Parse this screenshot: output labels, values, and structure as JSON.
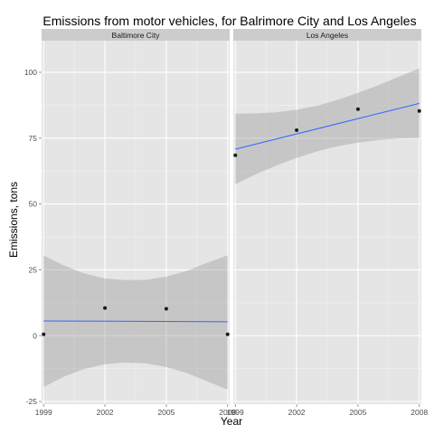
{
  "chart_data": {
    "type": "scatter",
    "title": "Emissions from motor vehicles, for Balrimore City and Los Angeles",
    "xlabel": "Year",
    "ylabel": "Emissions, tons",
    "xlim": [
      1998.9,
      2008.1
    ],
    "ylim": [
      -26,
      112
    ],
    "x_ticks": [
      1999,
      2002,
      2005,
      2008
    ],
    "x_tick_labels": [
      "1999",
      "2002",
      "2005",
      "2008"
    ],
    "y_ticks": [
      -25,
      0,
      25,
      50,
      75,
      100
    ],
    "y_tick_labels": [
      "-25",
      "0",
      "25",
      "50",
      "75",
      "100"
    ],
    "grid": true,
    "facets": [
      {
        "label": "Baltimore City",
        "points": [
          {
            "x": 1999,
            "y": 0.5
          },
          {
            "x": 2002,
            "y": 10.5
          },
          {
            "x": 2005,
            "y": 10.2
          },
          {
            "x": 2008,
            "y": 0.5
          }
        ],
        "fit": [
          {
            "x": 1999,
            "y": 5.6
          },
          {
            "x": 2008,
            "y": 5.3
          }
        ],
        "band": [
          {
            "x": 1999,
            "lo": -19.5,
            "hi": 30.5
          },
          {
            "x": 2000,
            "lo": -15.5,
            "hi": 26.6
          },
          {
            "x": 2001,
            "lo": -12.6,
            "hi": 23.6
          },
          {
            "x": 2002,
            "lo": -10.8,
            "hi": 21.7
          },
          {
            "x": 2003,
            "lo": -10.2,
            "hi": 21.1
          },
          {
            "x": 2004,
            "lo": -10.5,
            "hi": 21.2
          },
          {
            "x": 2005,
            "lo": -11.9,
            "hi": 22.4
          },
          {
            "x": 2006,
            "lo": -14.2,
            "hi": 24.6
          },
          {
            "x": 2007,
            "lo": -17.3,
            "hi": 27.7
          },
          {
            "x": 2008,
            "lo": -20.5,
            "hi": 30.5
          }
        ]
      },
      {
        "label": "Los Angeles",
        "points": [
          {
            "x": 1999,
            "y": 68.5
          },
          {
            "x": 2002,
            "y": 78
          },
          {
            "x": 2005,
            "y": 86
          },
          {
            "x": 2008,
            "y": 85.3
          }
        ],
        "fit": [
          {
            "x": 1999,
            "y": 70.8
          },
          {
            "x": 2008,
            "y": 88.2
          }
        ],
        "band": [
          {
            "x": 1999,
            "lo": 57.5,
            "hi": 84.3
          },
          {
            "x": 2000,
            "lo": 61.3,
            "hi": 84.4
          },
          {
            "x": 2001,
            "lo": 64.6,
            "hi": 84.8
          },
          {
            "x": 2002,
            "lo": 67.5,
            "hi": 85.8
          },
          {
            "x": 2003,
            "lo": 70.0,
            "hi": 87.3
          },
          {
            "x": 2004,
            "lo": 71.9,
            "hi": 89.5
          },
          {
            "x": 2005,
            "lo": 73.3,
            "hi": 92.2
          },
          {
            "x": 2006,
            "lo": 74.3,
            "hi": 95.1
          },
          {
            "x": 2007,
            "lo": 74.9,
            "hi": 98.3
          },
          {
            "x": 2008,
            "lo": 75.0,
            "hi": 101.5
          }
        ]
      }
    ],
    "colors": {
      "panel_background": "#e5e5e5",
      "strip_background": "#cccccc",
      "grid_major": "#ffffff",
      "grid_minor": "#f2f2f2",
      "band": "#999999",
      "fit_line": "#3366ff",
      "point": "#1a1a1a"
    }
  }
}
